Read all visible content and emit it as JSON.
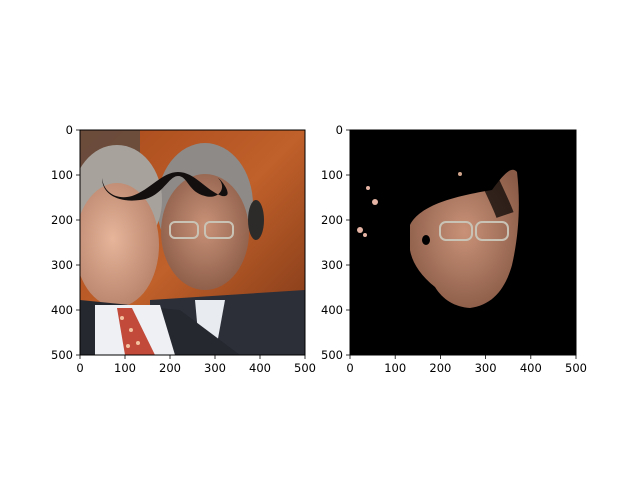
{
  "figure": {
    "panels": [
      {
        "id": "left",
        "content": "photo of two men, the man in the foreground-left with a red patterned tie and the man in the background-right with glasses, with a large black handlebar mustache graphic overlaid across both faces",
        "x_ticks": [
          "0",
          "100",
          "200",
          "300",
          "400",
          "500"
        ],
        "y_ticks": [
          "0",
          "100",
          "200",
          "300",
          "400",
          "500"
        ]
      },
      {
        "id": "right",
        "content": "segmentation mask on black background; only the face of the man with glasses is visible, plus small skin-colored speckles",
        "x_ticks": [
          "0",
          "100",
          "200",
          "300",
          "400",
          "500"
        ],
        "y_ticks": [
          "0",
          "100",
          "200",
          "300",
          "400",
          "500"
        ]
      }
    ]
  }
}
